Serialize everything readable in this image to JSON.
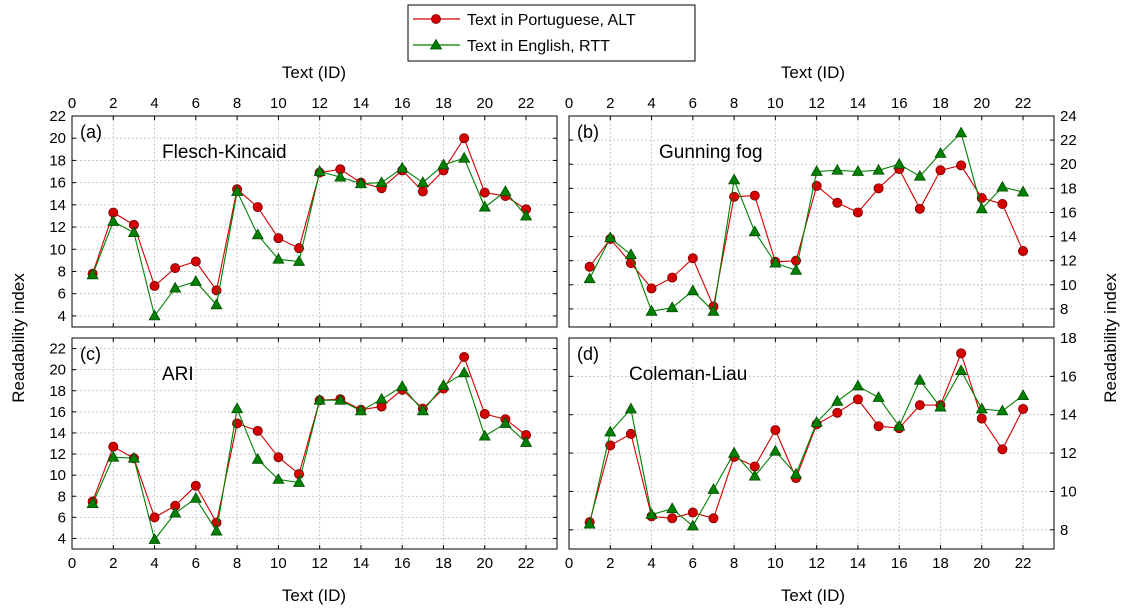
{
  "figure": {
    "top_xlabel": "Text (ID)",
    "bottom_xlabel": "Text (ID)",
    "left_ylabel": "Readability index",
    "right_ylabel": "Readability index"
  },
  "legend": {
    "placement": "top-center",
    "entries": [
      {
        "label": "Text in Portuguese, ALT",
        "color": "#d40000",
        "marker": "circle"
      },
      {
        "label": "Text in English, RTT",
        "color": "#008000",
        "marker": "triangle"
      }
    ]
  },
  "colors": {
    "portuguese": "#d40000",
    "english": "#008000"
  },
  "chart_data": [
    {
      "type": "line",
      "panel": "(a)",
      "title": "Flesch-Kincaid",
      "xlim": [
        0,
        23.5
      ],
      "ylim": [
        3,
        22
      ],
      "xticks": [
        0,
        2,
        4,
        6,
        8,
        10,
        12,
        14,
        16,
        18,
        20,
        22
      ],
      "yticks": [
        4,
        6,
        8,
        10,
        12,
        14,
        16,
        18,
        20,
        22
      ],
      "y_axis_side": "left",
      "x_ticklabels_side": "top",
      "grid": true,
      "x": [
        1,
        2,
        3,
        4,
        5,
        6,
        7,
        8,
        9,
        10,
        11,
        12,
        13,
        14,
        15,
        16,
        17,
        18,
        19,
        20,
        21,
        22
      ],
      "series": [
        {
          "name": "Text in Portuguese, ALT",
          "values": [
            7.8,
            13.3,
            12.2,
            6.7,
            8.3,
            8.9,
            6.3,
            15.4,
            13.8,
            11.0,
            10.1,
            16.9,
            17.2,
            16.0,
            15.5,
            17.1,
            15.2,
            17.1,
            20.0,
            15.1,
            14.8,
            13.6
          ]
        },
        {
          "name": "Text in English, RTT",
          "values": [
            7.7,
            12.5,
            11.5,
            4.0,
            6.5,
            7.1,
            5.0,
            15.2,
            11.3,
            9.1,
            8.9,
            17.0,
            16.5,
            15.9,
            16.0,
            17.3,
            16.0,
            17.6,
            18.2,
            13.8,
            15.2,
            13.0
          ]
        }
      ]
    },
    {
      "type": "line",
      "panel": "(b)",
      "title": "Gunning fog",
      "xlim": [
        0,
        23.5
      ],
      "ylim": [
        6.5,
        24
      ],
      "xticks": [
        0,
        2,
        4,
        6,
        8,
        10,
        12,
        14,
        16,
        18,
        20,
        22
      ],
      "yticks": [
        8,
        10,
        12,
        14,
        16,
        18,
        20,
        22,
        24
      ],
      "y_axis_side": "right",
      "x_ticklabels_side": "top",
      "grid": true,
      "x": [
        1,
        2,
        3,
        4,
        5,
        6,
        7,
        8,
        9,
        10,
        11,
        12,
        13,
        14,
        15,
        16,
        17,
        18,
        19,
        20,
        21,
        22
      ],
      "series": [
        {
          "name": "Text in Portuguese, ALT",
          "values": [
            11.5,
            13.8,
            11.8,
            9.7,
            10.6,
            12.2,
            8.2,
            17.3,
            17.4,
            11.9,
            12.0,
            18.2,
            16.8,
            16.0,
            18.0,
            19.6,
            16.3,
            19.5,
            19.9,
            17.2,
            16.7,
            12.8
          ]
        },
        {
          "name": "Text in English, RTT",
          "values": [
            10.5,
            13.9,
            12.5,
            7.8,
            8.1,
            9.5,
            7.8,
            18.7,
            14.4,
            11.8,
            11.2,
            19.4,
            19.5,
            19.4,
            19.5,
            20.0,
            19.0,
            20.9,
            22.6,
            16.3,
            18.1,
            17.7
          ]
        }
      ]
    },
    {
      "type": "line",
      "panel": "(c)",
      "title": "ARI",
      "xlim": [
        0,
        23.5
      ],
      "ylim": [
        3,
        23
      ],
      "xticks": [
        0,
        2,
        4,
        6,
        8,
        10,
        12,
        14,
        16,
        18,
        20,
        22
      ],
      "xticklabels": [
        "0",
        "2",
        "4",
        "6",
        "8",
        "10",
        "12",
        "14",
        "16",
        "18",
        "20",
        "22"
      ],
      "yticks": [
        4,
        6,
        8,
        10,
        12,
        14,
        16,
        18,
        20,
        22
      ],
      "y_axis_side": "left",
      "x_ticklabels_side": "bottom",
      "grid": true,
      "x": [
        1,
        2,
        3,
        4,
        5,
        6,
        7,
        8,
        9,
        10,
        11,
        12,
        13,
        14,
        15,
        16,
        17,
        18,
        19,
        20,
        21,
        22
      ],
      "series": [
        {
          "name": "Text in Portuguese, ALT",
          "values": [
            7.5,
            12.7,
            11.6,
            6.0,
            7.1,
            9.0,
            5.5,
            14.9,
            14.2,
            11.7,
            10.1,
            17.1,
            17.2,
            16.2,
            16.5,
            18.1,
            16.3,
            18.2,
            21.2,
            15.8,
            15.3,
            13.8
          ]
        },
        {
          "name": "Text in English, RTT",
          "values": [
            7.3,
            11.7,
            11.6,
            3.9,
            6.4,
            7.8,
            4.7,
            16.3,
            11.5,
            9.6,
            9.3,
            17.1,
            17.1,
            16.1,
            17.2,
            18.4,
            16.1,
            18.5,
            19.7,
            13.7,
            14.9,
            13.1
          ]
        }
      ]
    },
    {
      "type": "line",
      "panel": "(d)",
      "title": "Coleman-Liau",
      "xlim": [
        0,
        23.5
      ],
      "ylim": [
        7,
        18
      ],
      "xticks": [
        0,
        2,
        4,
        6,
        8,
        10,
        12,
        14,
        16,
        18,
        20,
        22
      ],
      "xticklabels": [
        "0",
        "2",
        "4",
        "6",
        "8",
        "10",
        "12",
        "14",
        "16",
        "18",
        "20",
        "22"
      ],
      "yticks": [
        8,
        10,
        12,
        14,
        16,
        18
      ],
      "y_axis_side": "right",
      "x_ticklabels_side": "bottom",
      "grid": true,
      "x": [
        1,
        2,
        3,
        4,
        5,
        6,
        7,
        8,
        9,
        10,
        11,
        12,
        13,
        14,
        15,
        16,
        17,
        18,
        19,
        20,
        21,
        22
      ],
      "series": [
        {
          "name": "Text in Portuguese, ALT",
          "values": [
            8.4,
            12.4,
            13.0,
            8.7,
            8.6,
            8.9,
            8.6,
            11.8,
            11.3,
            13.2,
            10.7,
            13.5,
            14.1,
            14.8,
            13.4,
            13.3,
            14.5,
            14.5,
            17.2,
            13.8,
            12.2,
            14.3
          ]
        },
        {
          "name": "Text in English, RTT",
          "values": [
            8.3,
            13.1,
            14.3,
            8.8,
            9.1,
            8.2,
            10.1,
            12.0,
            10.8,
            12.1,
            10.9,
            13.6,
            14.7,
            15.5,
            14.9,
            13.4,
            15.8,
            14.4,
            16.3,
            14.3,
            14.2,
            15.0
          ]
        }
      ]
    }
  ]
}
